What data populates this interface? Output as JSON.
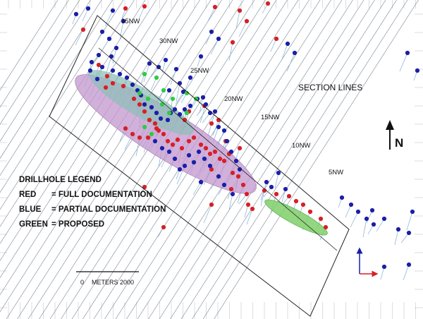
{
  "colors": {
    "full_documentation": "#d81f26",
    "partial_documentation": "#1a1fa8",
    "proposed": "#2ecc40",
    "section_line": "#6f7b8a",
    "main_zone_fill": "#c49ad0",
    "zone_inner_fill": "#8fbfb8",
    "proposed_zone_fill": "#7fcf6a",
    "frame": "#222222",
    "survey_trace": "#7fb0d8"
  },
  "legend": {
    "title": "DRILLHOLE LEGEND",
    "items": [
      {
        "key": "RED",
        "text": "= FULL DOCUMENTATION",
        "color_key": "full_documentation"
      },
      {
        "key": "BLUE",
        "text": "= PARTIAL DOCUMENTATION",
        "color_key": "partial_documentation"
      },
      {
        "key": "GREEN",
        "text": "= PROPOSED",
        "color_key": "proposed"
      }
    ]
  },
  "section_lines_label": "SECTION LINES",
  "section_labels": [
    "35NW",
    "30NW",
    "25NW",
    "20NW",
    "15NW",
    "10NW",
    "5NW"
  ],
  "north_label": "N",
  "scale_bar": {
    "start": "0",
    "unit": "METERS",
    "end": "2000"
  },
  "icons": [
    "north-arrow-icon",
    "xy-axes-icon"
  ],
  "drillholes": {
    "red": [
      [
        178,
        12
      ],
      [
        205,
        9
      ],
      [
        118,
        42
      ],
      [
        140,
        92
      ],
      [
        152,
        108
      ],
      [
        150,
        124
      ],
      [
        160,
        118
      ],
      [
        175,
        122
      ],
      [
        190,
        140
      ],
      [
        198,
        148
      ],
      [
        205,
        158
      ],
      [
        212,
        170
      ],
      [
        220,
        175
      ],
      [
        225,
        185
      ],
      [
        232,
        190
      ],
      [
        238,
        200
      ],
      [
        245,
        205
      ],
      [
        252,
        198
      ],
      [
        258,
        210
      ],
      [
        268,
        200
      ],
      [
        275,
        195
      ],
      [
        285,
        205
      ],
      [
        292,
        210
      ],
      [
        298,
        218
      ],
      [
        305,
        215
      ],
      [
        312,
        225
      ],
      [
        300,
        240
      ],
      [
        318,
        228
      ],
      [
        325,
        218
      ],
      [
        330,
        245
      ],
      [
        338,
        250
      ],
      [
        345,
        262
      ],
      [
        350,
        275
      ],
      [
        352,
        290
      ],
      [
        358,
        296
      ],
      [
        300,
        290
      ],
      [
        328,
        268
      ],
      [
        178,
        182
      ],
      [
        188,
        190
      ],
      [
        198,
        195
      ],
      [
        210,
        195
      ],
      [
        222,
        182
      ],
      [
        262,
        170
      ],
      [
        268,
        158
      ],
      [
        290,
        150
      ],
      [
        300,
        175
      ],
      [
        310,
        170
      ],
      [
        320,
        200
      ],
      [
        340,
        210
      ],
      [
        392,
        55
      ],
      [
        350,
        30
      ],
      [
        330,
        60
      ],
      [
        232,
        322
      ],
      [
        205,
        265
      ],
      [
        375,
        270
      ],
      [
        392,
        275
      ],
      [
        410,
        278
      ],
      [
        420,
        285
      ],
      [
        430,
        290
      ],
      [
        440,
        300
      ],
      [
        455,
        310
      ],
      [
        462,
        322
      ],
      [
        305,
        10
      ],
      [
        340,
        15
      ],
      [
        380,
        5
      ]
    ],
    "blue": [
      [
        108,
        20
      ],
      [
        125,
        12
      ],
      [
        160,
        15
      ],
      [
        175,
        30
      ],
      [
        145,
        45
      ],
      [
        155,
        55
      ],
      [
        165,
        68
      ],
      [
        158,
        80
      ],
      [
        140,
        78
      ],
      [
        130,
        88
      ],
      [
        128,
        100
      ],
      [
        138,
        112
      ],
      [
        145,
        95
      ],
      [
        160,
        100
      ],
      [
        170,
        105
      ],
      [
        180,
        110
      ],
      [
        188,
        120
      ],
      [
        195,
        128
      ],
      [
        200,
        135
      ],
      [
        205,
        148
      ],
      [
        215,
        152
      ],
      [
        222,
        160
      ],
      [
        228,
        168
      ],
      [
        238,
        170
      ],
      [
        242,
        160
      ],
      [
        248,
        155
      ],
      [
        255,
        162
      ],
      [
        262,
        155
      ],
      [
        270,
        150
      ],
      [
        280,
        140
      ],
      [
        288,
        138
      ],
      [
        292,
        148
      ],
      [
        298,
        160
      ],
      [
        305,
        158
      ],
      [
        310,
        180
      ],
      [
        318,
        185
      ],
      [
        322,
        200
      ],
      [
        328,
        215
      ],
      [
        335,
        228
      ],
      [
        340,
        240
      ],
      [
        318,
        262
      ],
      [
        310,
        250
      ],
      [
        298,
        235
      ],
      [
        290,
        225
      ],
      [
        282,
        215
      ],
      [
        275,
        230
      ],
      [
        268,
        220
      ],
      [
        262,
        235
      ],
      [
        255,
        240
      ],
      [
        248,
        225
      ],
      [
        240,
        215
      ],
      [
        230,
        210
      ],
      [
        220,
        200
      ],
      [
        285,
        258
      ],
      [
        330,
        275
      ],
      [
        212,
        90
      ],
      [
        225,
        95
      ],
      [
        235,
        85
      ],
      [
        250,
        98
      ],
      [
        270,
        110
      ],
      [
        285,
        80
      ],
      [
        300,
        45
      ],
      [
        310,
        55
      ],
      [
        255,
        118
      ],
      [
        240,
        128
      ],
      [
        260,
        130
      ],
      [
        395,
        245
      ],
      [
        378,
        258
      ],
      [
        385,
        265
      ],
      [
        405,
        268
      ],
      [
        408,
        62
      ],
      [
        418,
        75
      ],
      [
        485,
        280
      ],
      [
        498,
        290
      ],
      [
        508,
        300
      ],
      [
        520,
        310
      ],
      [
        530,
        318
      ],
      [
        545,
        310
      ],
      [
        565,
        325
      ],
      [
        585,
        300
      ],
      [
        580,
        330
      ],
      [
        545,
        378
      ],
      [
        580,
        375
      ],
      [
        578,
        75
      ],
      [
        592,
        100
      ],
      [
        528,
        298
      ]
    ],
    "green": [
      [
        205,
        105
      ],
      [
        222,
        110
      ],
      [
        232,
        128
      ],
      [
        245,
        140
      ],
      [
        265,
        132
      ],
      [
        278,
        140
      ],
      [
        198,
        132
      ],
      [
        210,
        140
      ],
      [
        230,
        148
      ],
      [
        240,
        160
      ],
      [
        205,
        180
      ],
      [
        215,
        190
      ],
      [
        265,
        160
      ]
    ]
  }
}
